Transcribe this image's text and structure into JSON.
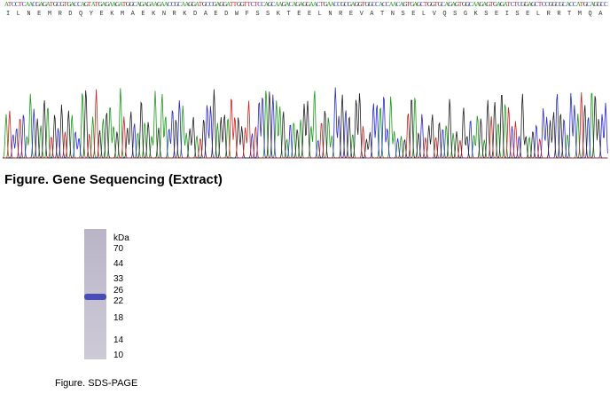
{
  "sequencing": {
    "dna": "ATCCTCAACGAGATGCGTGACCAGTATGAGAAGATGGCAGAGAAGAACCGCAAGGATGCCGAGGATTGGTTCTCCAGCAAGACAGAGGAACTGAACCGCGAGGTGGCCACCAACAGTGAGCTGGTGCAGAGTGGCAAGAGTGAGATCTCGGAGCTCCGGCGCACCATGCAGGCC",
    "protein": [
      "I",
      "L",
      "N",
      "E",
      "M",
      "R",
      "D",
      "Q",
      "Y",
      "E",
      "K",
      "M",
      "A",
      "E",
      "K",
      "N",
      "R",
      "K",
      "D",
      "A",
      "E",
      "D",
      "W",
      "F",
      "S",
      "S",
      "K",
      "T",
      "E",
      "E",
      "L",
      "N",
      "R",
      "E",
      "V",
      "A",
      "T",
      "N",
      "S",
      "E",
      "L",
      "V",
      "Q",
      "S",
      "G",
      "K",
      "S",
      "E",
      "I",
      "S",
      "E",
      "L",
      "R",
      "R",
      "T",
      "M",
      "Q",
      "A"
    ],
    "caption": "Figure. Gene Sequencing (Extract)"
  },
  "sds_page": {
    "unit": "kDa",
    "markers": [
      70,
      44,
      33,
      26,
      22,
      18,
      14,
      10
    ],
    "caption": "Figure. SDS-PAGE"
  }
}
